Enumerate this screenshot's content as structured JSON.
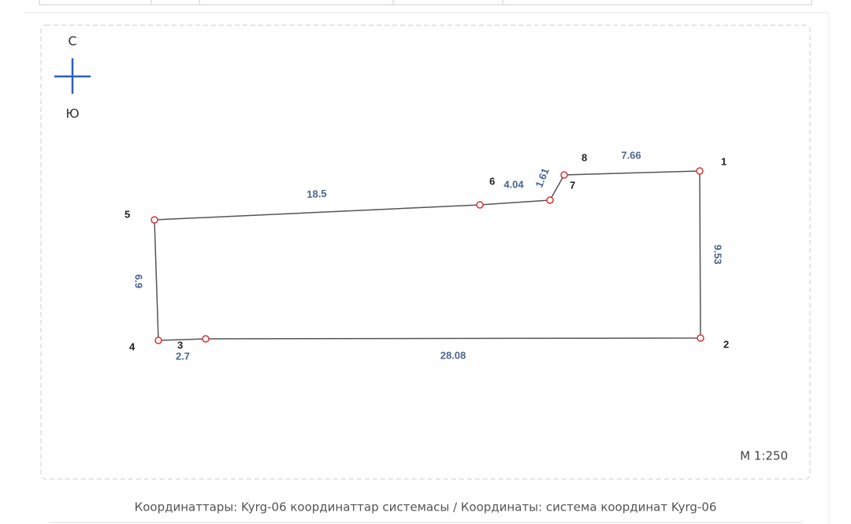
{
  "compass": {
    "north": "С",
    "south": "Ю"
  },
  "points": [
    "1",
    "2",
    "3",
    "4",
    "5",
    "6",
    "7",
    "8"
  ],
  "edges": [
    "7.66",
    "9.53",
    "28.08",
    "2.7",
    "6.9",
    "18.5",
    "4.04",
    "1.61"
  ],
  "scale": "М 1:250",
  "caption": "Координаттары: Kyrg-06 координаттар системасы / Координаты: система координат Kyrg-06"
}
